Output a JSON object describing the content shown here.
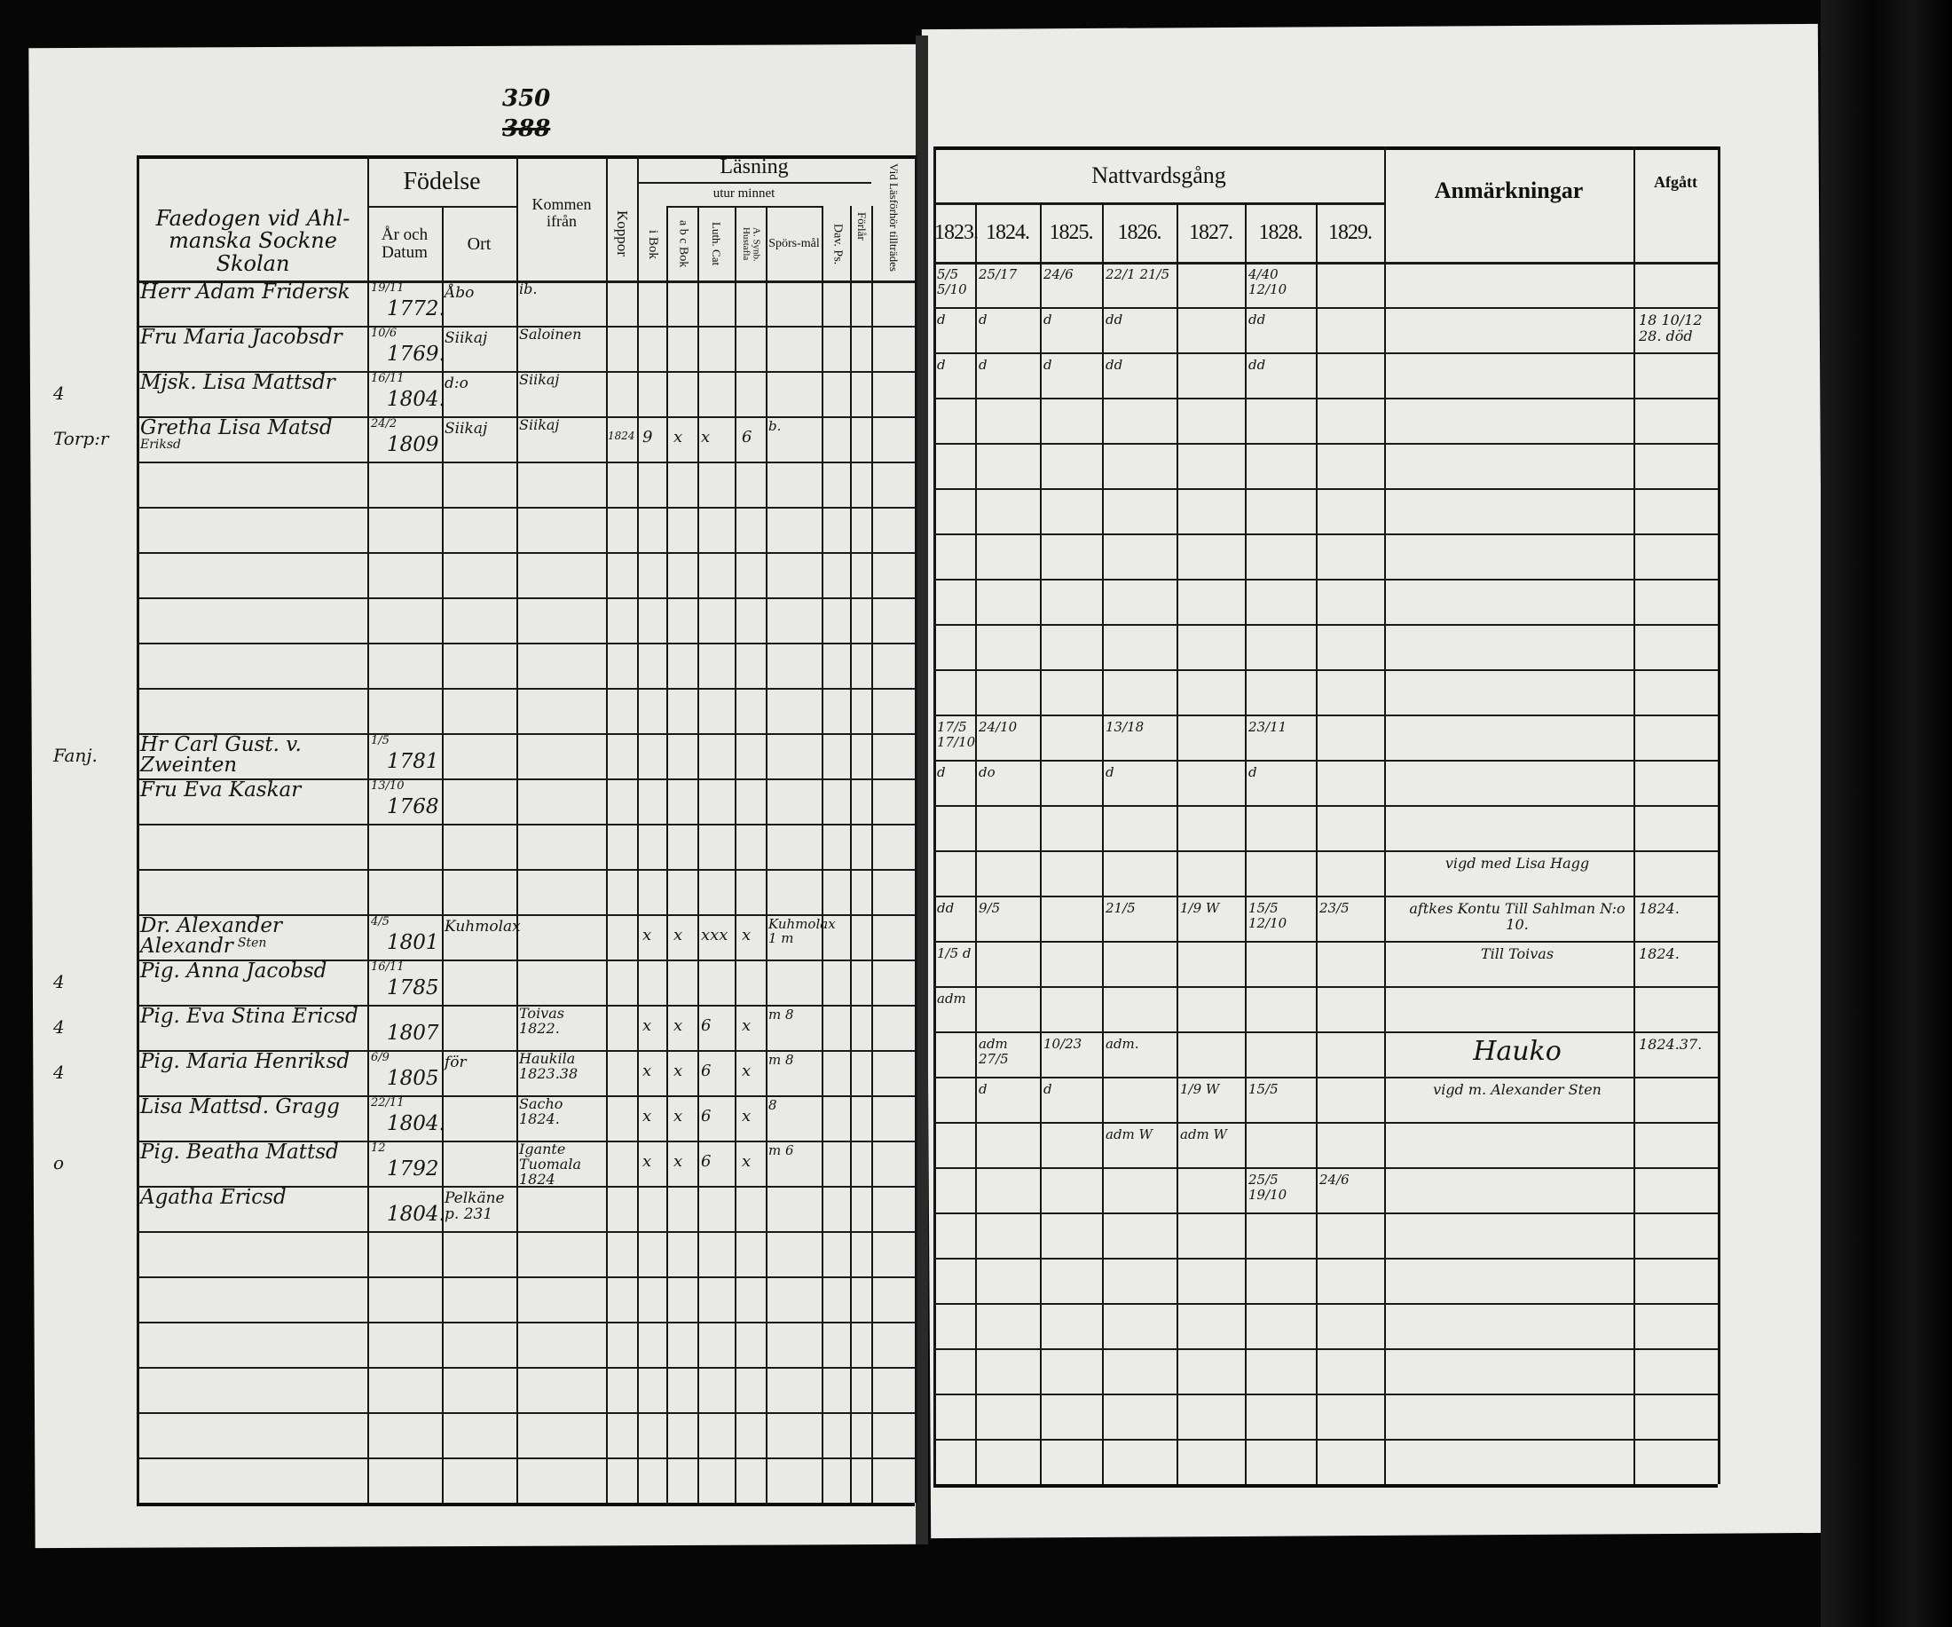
{
  "page": {
    "number": "350",
    "old_number": "388"
  },
  "left_header": {
    "title_handwritten": "Faedogen vid Ahl-manska Sockne Skolan",
    "fodelse": "Födelse",
    "ar_och_datum": "År och Datum",
    "ort": "Ort",
    "kommen_ifran": "Kommen ifrån",
    "koppor": "Koppor",
    "lasning": "Läsning",
    "utur_minnet": "utur minnet",
    "i_bok": "i Bok",
    "abc_bok": "a b c Bok",
    "luth_cat": "Luth. Cat",
    "synb_hustafla": "A. Synb. Hustafla",
    "sporsmal": "Spörs-mål",
    "dav_ps": "Dav. Ps.",
    "forlar": "Förlår",
    "vid_lasforhor": "Vid Läsförhör tillträdes"
  },
  "right_header": {
    "nattvardsgang": "Nattvardsgång",
    "years": [
      "1823.",
      "1824.",
      "1825.",
      "1826.",
      "1827.",
      "1828.",
      "1829."
    ],
    "anmarkningar": "Anmärkningar",
    "afgatt": "Afgått"
  },
  "left_rows": [
    {
      "name": "Herr Adam Fridersk",
      "date": "19/11",
      "year": "1772.",
      "ort": "Åbo",
      "kommen": "ib."
    },
    {
      "name": "Fru Maria Jacobsdr",
      "date": "10/6",
      "year": "1769.",
      "ort": "Siikaj",
      "kommen": "Saloinen"
    },
    {
      "margin": "4",
      "name": "Mjsk. Lisa Mattsdr",
      "date": "16/11",
      "year": "1804.",
      "ort": "d:o",
      "kommen": "Siikaj"
    },
    {
      "margin": "Torp:r",
      "name": "Gretha Lisa Matsd",
      "note": "Eriksd",
      "date": "24/2",
      "year": "1809",
      "ort": "Siikaj",
      "kommen": "Siikaj",
      "koppor": "1824",
      "i_bok": "9",
      "abc": "x",
      "luth": "x",
      "synb": "6",
      "spors": "b."
    },
    {},
    {},
    {},
    {},
    {},
    {},
    {
      "margin": "Fanj.",
      "name": "Hr Carl Gust. v. Zweinten",
      "date": "1/5",
      "year": "1781"
    },
    {
      "name": "Fru Eva Kaskar",
      "date": "13/10",
      "year": "1768"
    },
    {},
    {},
    {
      "name": "Dr. Alexander Alexandr",
      "note": "Sten",
      "date": "4/5",
      "year": "1801",
      "ort": "Kuhmolax",
      "i_bok": "x",
      "abc": "x",
      "luth": "xxx",
      "synb": "x",
      "spors": "Kuhmolax 1 m"
    },
    {
      "margin": "4",
      "name": "Pig. Anna Jacobsd",
      "date": "16/11",
      "year": "1785"
    },
    {
      "margin": "4",
      "name": "Pig. Eva Stina Ericsd",
      "year": "1807",
      "kommen": "Toivas 1822.",
      "i_bok": "x",
      "abc": "x",
      "luth": "6",
      "synb": "x",
      "spors": "m 8"
    },
    {
      "margin": "4",
      "name": "Pig. Maria Henriksd",
      "date": "6/9",
      "year": "1805",
      "ort": "för",
      "kommen": "Haukila 1823.38",
      "i_bok": "x",
      "abc": "x",
      "luth": "6",
      "synb": "x",
      "spors": "m 8"
    },
    {
      "name": "Lisa Mattsd. Gragg",
      "date": "22/11",
      "year": "1804.",
      "kommen": "Sacho 1824.",
      "i_bok": "x",
      "abc": "x",
      "luth": "6",
      "synb": "x",
      "spors": "8"
    },
    {
      "margin": "o",
      "name": "Pig. Beatha Mattsd",
      "date": "12",
      "year": "1792",
      "kommen": "Igante Tuomala 1824",
      "i_bok": "x",
      "abc": "x",
      "luth": "6",
      "synb": "x",
      "spors": "m 6"
    },
    {
      "name": "Agatha Ericsd",
      "year": "1804.",
      "ort": "Pelkäne p. 231"
    },
    {},
    {},
    {},
    {},
    {},
    {}
  ],
  "right_rows": [
    {
      "y1823": "5/5 5/10",
      "y1824": "25/17",
      "y1825": "24/6",
      "y1826": "22/1 21/5",
      "y1828": "4/40 12/10"
    },
    {
      "y1823": "d",
      "y1824": "d",
      "y1825": "d",
      "y1826": "dd",
      "y1828": "dd",
      "afgatt": "18 10/12 28. död"
    },
    {
      "y1823": "d",
      "y1824": "d",
      "y1825": "d",
      "y1826": "dd",
      "y1828": "dd"
    },
    {},
    {},
    {},
    {},
    {},
    {},
    {},
    {
      "y1823": "17/5 17/10",
      "y1824": "24/10",
      "y1826": "13/18",
      "y1828": "23/11"
    },
    {
      "y1823": "d",
      "y1824": "do",
      "y1826": "d",
      "y1828": "d"
    },
    {},
    {
      "anm": "vigd med Lisa Hagg"
    },
    {
      "y1823": "dd",
      "y1824": "9/5",
      "y1826": "21/5",
      "y1827": "1/9 W",
      "y1828": "15/5 12/10",
      "y1829": "23/5",
      "anm": "aftkes Kontu Till Sahlman N:o 10.",
      "afgatt": "1824."
    },
    {
      "y1823": "1/5 d",
      "anm": "Till Toivas",
      "afgatt": "1824."
    },
    {
      "y1823": "adm"
    },
    {
      "y1824": "adm 27/5",
      "y1825": "10/23",
      "y1826": "adm.",
      "anm": "Hauko",
      "afgatt": "1824.37."
    },
    {
      "y1824": "d",
      "y1825": "d",
      "y1827": "1/9 W",
      "y1828": "15/5",
      "anm": "vigd m. Alexander Sten"
    },
    {
      "y1826": "adm W",
      "y1827": "adm W"
    },
    {
      "y1828": "25/5 19/10",
      "y1829": "24/6"
    },
    {},
    {},
    {},
    {},
    {},
    {}
  ]
}
